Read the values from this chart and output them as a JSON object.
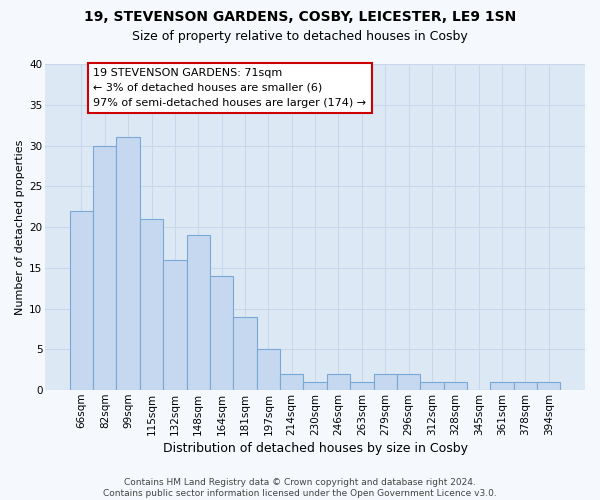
{
  "title1": "19, STEVENSON GARDENS, COSBY, LEICESTER, LE9 1SN",
  "title2": "Size of property relative to detached houses in Cosby",
  "xlabel": "Distribution of detached houses by size in Cosby",
  "ylabel": "Number of detached properties",
  "categories": [
    "66sqm",
    "82sqm",
    "99sqm",
    "115sqm",
    "132sqm",
    "148sqm",
    "164sqm",
    "181sqm",
    "197sqm",
    "214sqm",
    "230sqm",
    "246sqm",
    "263sqm",
    "279sqm",
    "296sqm",
    "312sqm",
    "328sqm",
    "345sqm",
    "361sqm",
    "378sqm",
    "394sqm"
  ],
  "values": [
    22,
    30,
    31,
    21,
    16,
    19,
    14,
    9,
    5,
    2,
    1,
    2,
    1,
    2,
    2,
    1,
    1,
    0,
    1,
    1,
    1
  ],
  "bar_color": "#c5d8f0",
  "bar_edge_color": "#7aa8d4",
  "annotation_text": "19 STEVENSON GARDENS: 71sqm\n← 3% of detached houses are smaller (6)\n97% of semi-detached houses are larger (174) →",
  "annotation_box_facecolor": "#ffffff",
  "annotation_box_edgecolor": "#cc0000",
  "ylim": [
    0,
    40
  ],
  "yticks": [
    0,
    5,
    10,
    15,
    20,
    25,
    30,
    35,
    40
  ],
  "plot_bg_color": "#dde8f5",
  "fig_bg_color": "#f5f8fc",
  "grid_color": "#c8d8ea",
  "footer_line1": "Contains HM Land Registry data © Crown copyright and database right 2024.",
  "footer_line2": "Contains public sector information licensed under the Open Government Licence v3.0.",
  "title1_fontsize": 10,
  "title2_fontsize": 9,
  "xlabel_fontsize": 9,
  "ylabel_fontsize": 8,
  "tick_fontsize": 7.5,
  "annotation_fontsize": 8,
  "footer_fontsize": 6.5
}
